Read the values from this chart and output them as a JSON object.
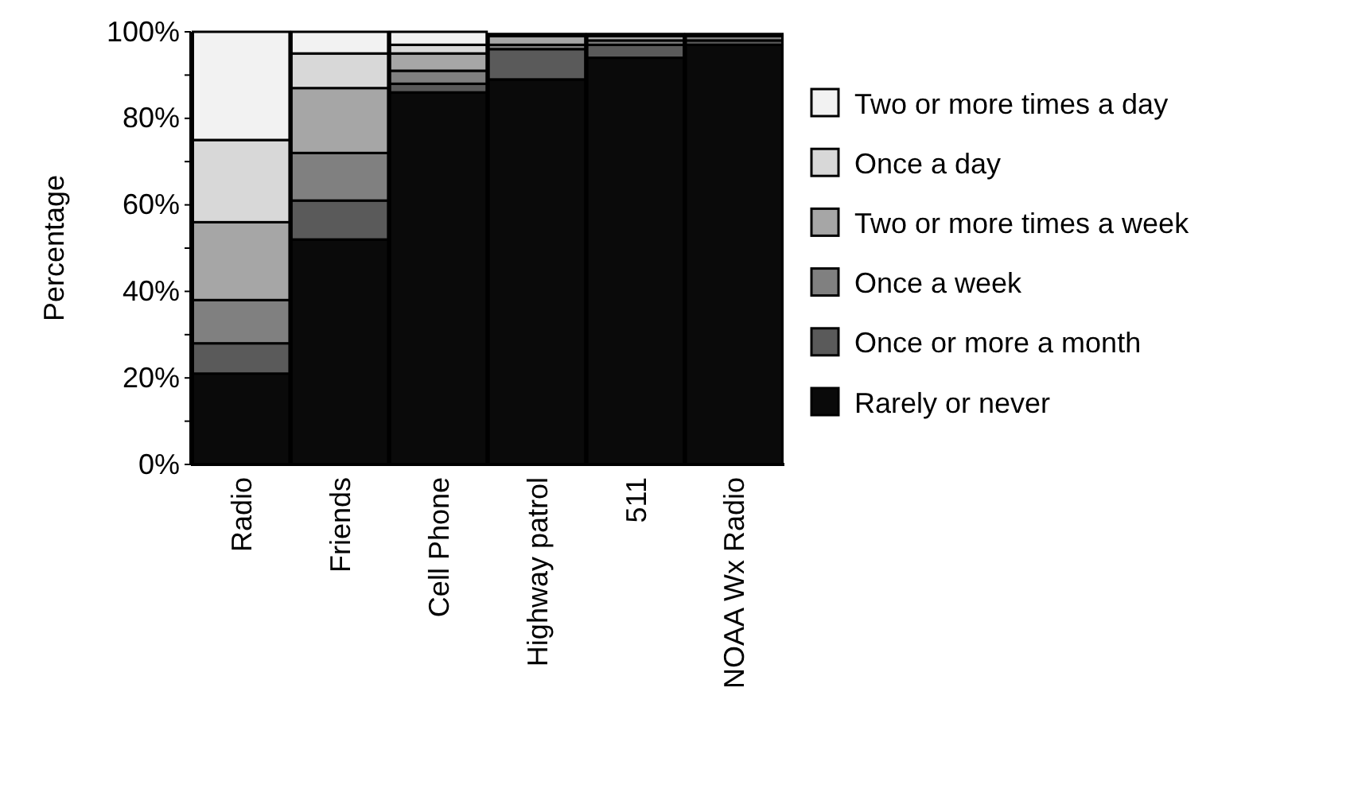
{
  "chart_data": {
    "type": "bar",
    "stacked": true,
    "ylabel": "Percentage",
    "legend": "right",
    "categories": [
      "Radio",
      "Friends",
      "Cell Phone",
      "Highway patrol",
      "511",
      "NOAA Wx Radio"
    ],
    "ylim": [
      0,
      100
    ],
    "yticks": [
      {
        "value": 0,
        "label": "0%"
      },
      {
        "value": 10,
        "label": null
      },
      {
        "value": 20,
        "label": "20%"
      },
      {
        "value": 30,
        "label": null
      },
      {
        "value": 40,
        "label": "40%"
      },
      {
        "value": 50,
        "label": null
      },
      {
        "value": 60,
        "label": "60%"
      },
      {
        "value": 70,
        "label": null
      },
      {
        "value": 80,
        "label": "80%"
      },
      {
        "value": 90,
        "label": null
      },
      {
        "value": 100,
        "label": "100%"
      }
    ],
    "series": [
      {
        "name": "Rarely or never",
        "color": "#0a0a0a",
        "values": [
          21,
          52,
          86,
          89,
          94,
          97
        ]
      },
      {
        "name": "Once or more a month",
        "color": "#5a5a5a",
        "values": [
          7,
          9,
          2,
          7,
          3,
          1
        ]
      },
      {
        "name": "Once a week",
        "color": "#808080",
        "values": [
          10,
          11,
          3,
          1,
          1,
          1
        ]
      },
      {
        "name": "Two or more times a week",
        "color": "#a6a6a6",
        "values": [
          18,
          15,
          4,
          2,
          1,
          null
        ]
      },
      {
        "name": "Once a day",
        "color": "#d8d8d8",
        "values": [
          19,
          8,
          2,
          null,
          null,
          0.5
        ]
      },
      {
        "name": "Two or more times a day",
        "color": "#f2f2f2",
        "values": [
          25,
          5,
          3,
          0.5,
          0.5,
          0
        ]
      }
    ]
  }
}
